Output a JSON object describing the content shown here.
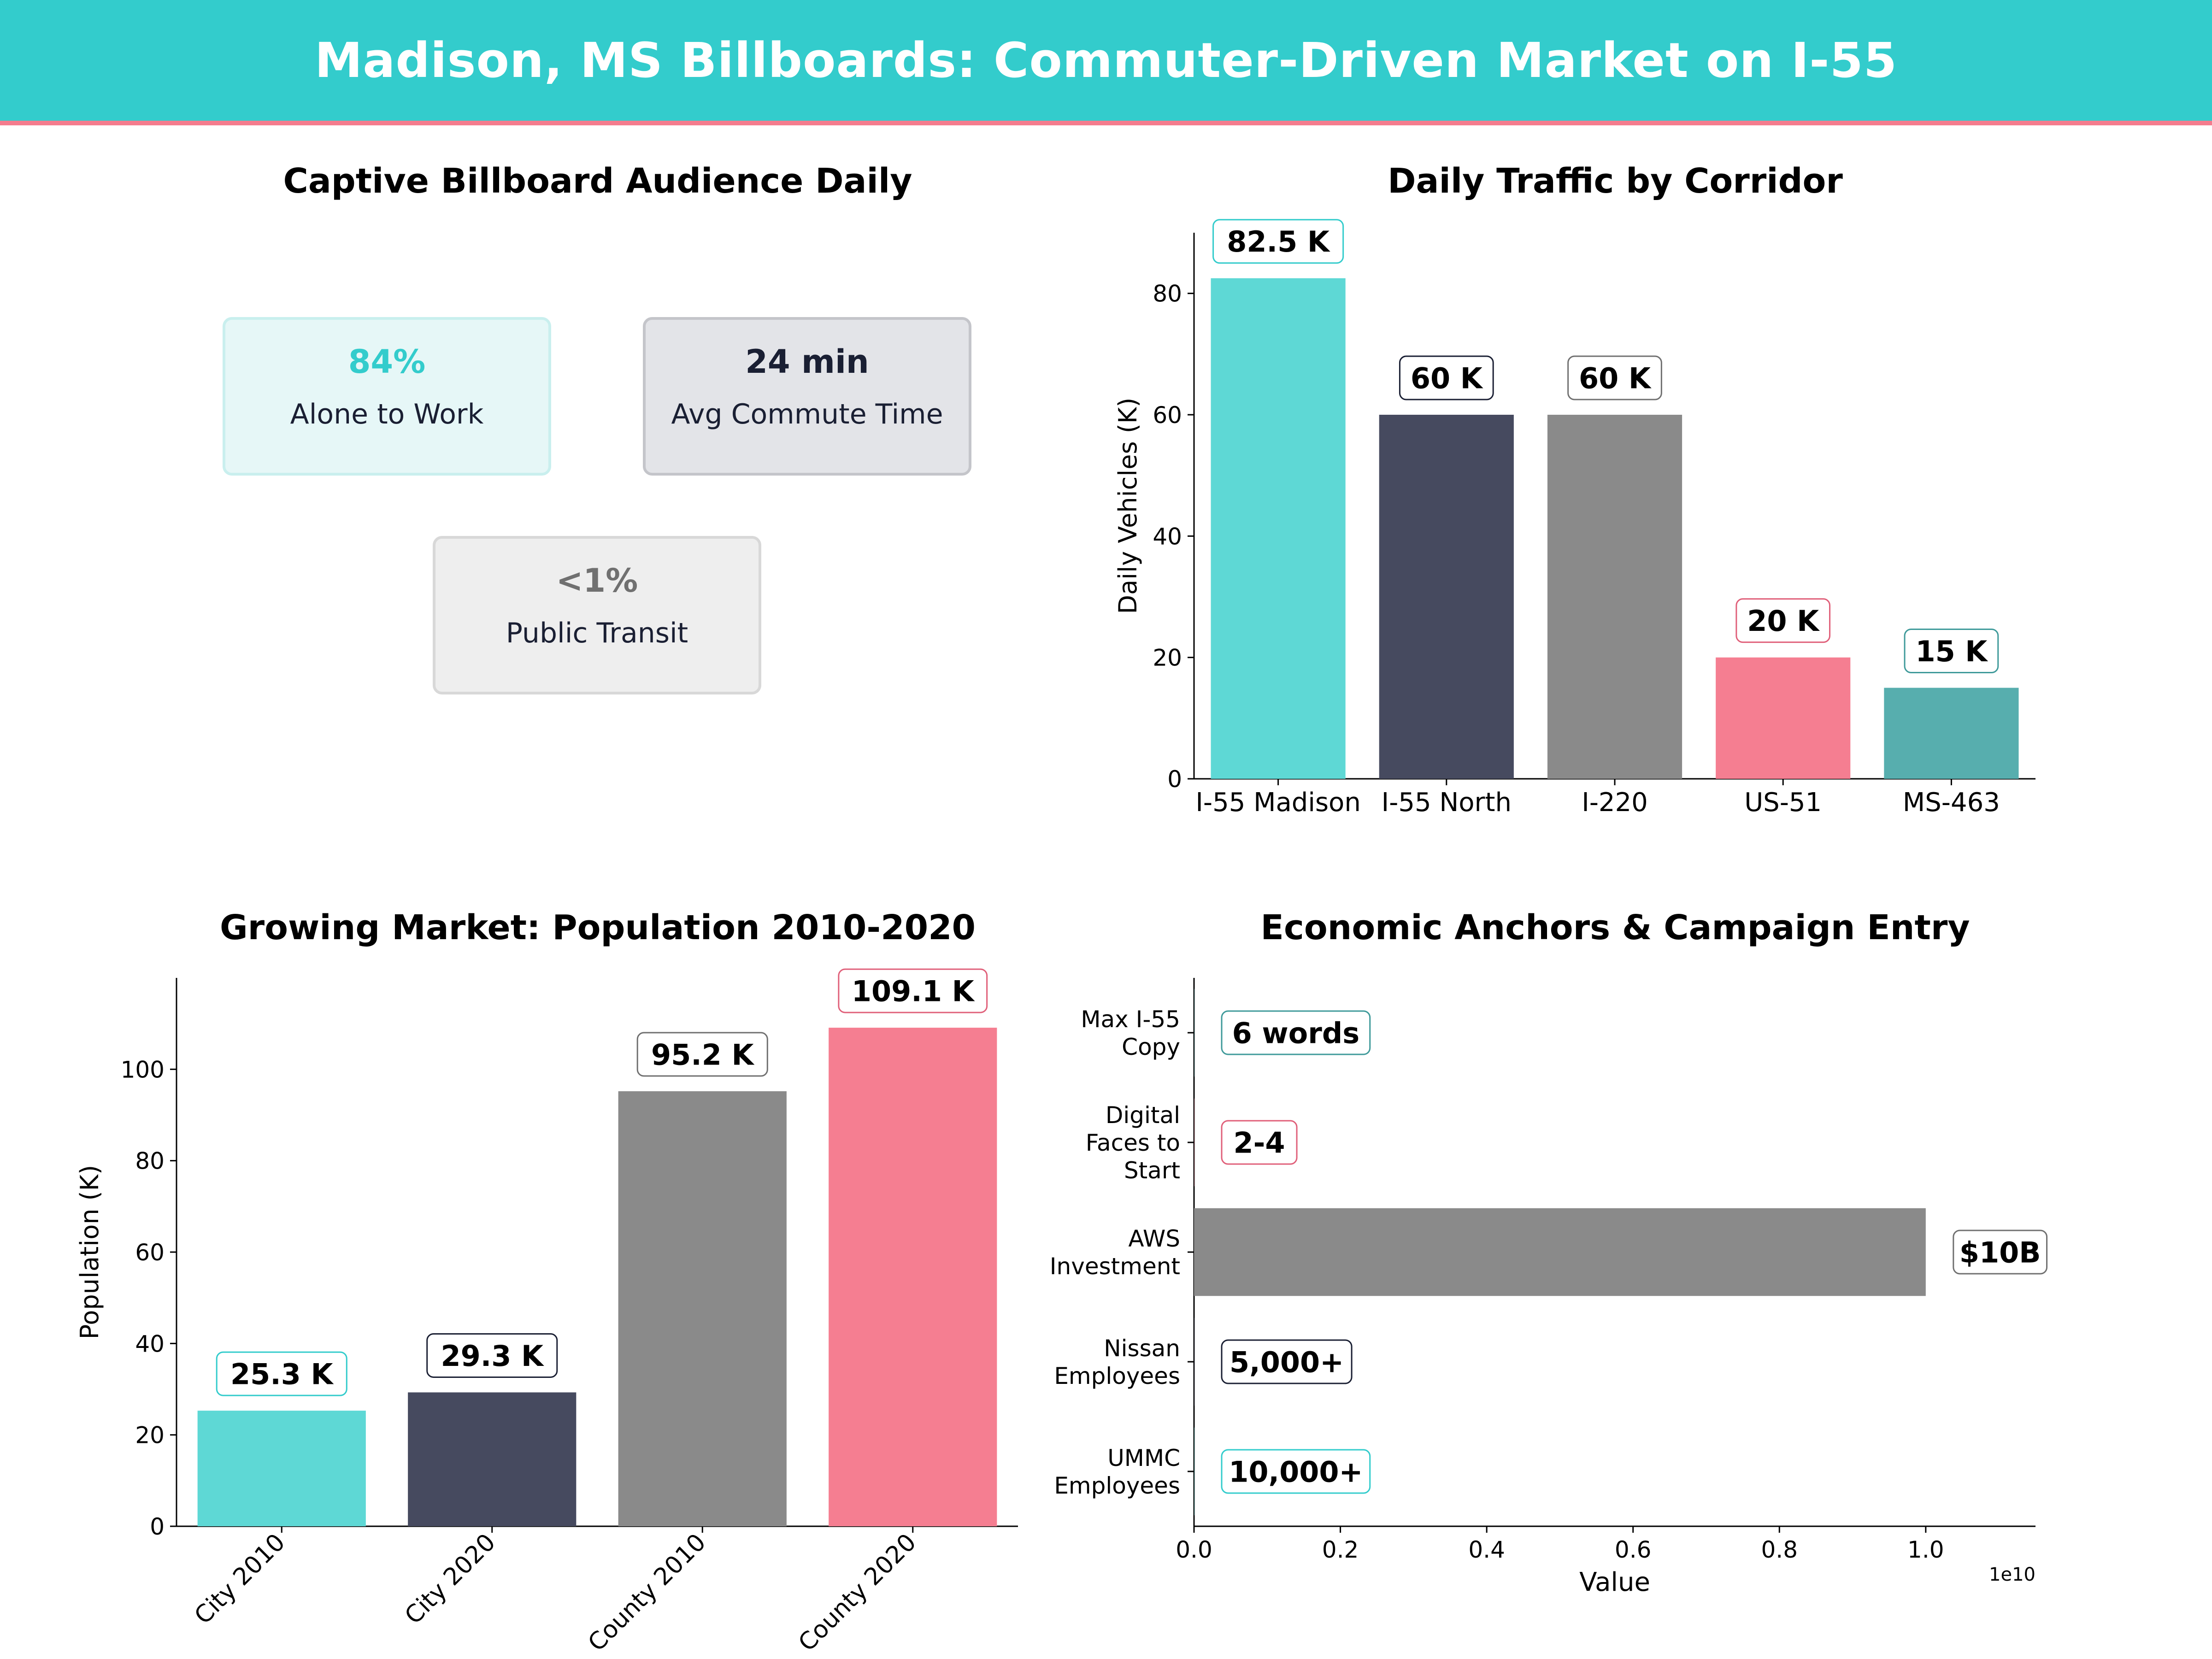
{
  "header": {
    "title": "Madison, MS Billboards: Commuter-Driven Market on I-55"
  },
  "colors": {
    "teal": "#5ed8d5",
    "navy": "#464a5f",
    "gray": "#8a8a8a",
    "pink": "#f57e91",
    "darkteal": "#57aeae"
  },
  "kpi": {
    "title": "Captive Billboard Audience Daily",
    "cards": [
      {
        "value": "84%",
        "label": "Alone to Work"
      },
      {
        "value": "24 min",
        "label": "Avg Commute Time"
      },
      {
        "value": "<1%",
        "label": "Public Transit"
      }
    ]
  },
  "chart_data": [
    {
      "type": "bar",
      "title": "Daily Traffic by Corridor",
      "xlabel": "",
      "ylabel": "Daily Vehicles (K)",
      "categories": [
        "I-55 Madison",
        "I-55 North",
        "I-220",
        "US-51",
        "MS-463"
      ],
      "values": [
        82.5,
        60,
        60,
        20,
        15
      ],
      "labels": [
        "82.5 K",
        "60 K",
        "60 K",
        "20 K",
        "15 K"
      ],
      "ylim": [
        0,
        90
      ],
      "yticks": [
        0,
        20,
        40,
        60,
        80
      ],
      "grid": false
    },
    {
      "type": "bar",
      "title": "Growing Market: Population 2010-2020",
      "xlabel": "",
      "ylabel": "Population (K)",
      "categories": [
        "City 2010",
        "City 2020",
        "County 2010",
        "County 2020"
      ],
      "values": [
        25.3,
        29.3,
        95.2,
        109.1
      ],
      "labels": [
        "25.3 K",
        "29.3 K",
        "95.2 K",
        "109.1 K"
      ],
      "ylim": [
        0,
        120
      ],
      "yticks": [
        0,
        20,
        40,
        60,
        80,
        100
      ],
      "grid": false
    },
    {
      "type": "bar",
      "orientation": "horizontal",
      "title": "Economic Anchors & Campaign Entry",
      "xlabel": "Value",
      "ylabel": "",
      "categories": [
        "UMMC Employees",
        "Nissan Employees",
        "AWS Investment",
        "Digital Faces to Start",
        "Max I-55 Copy"
      ],
      "category_lines": [
        [
          "UMMC",
          "Employees"
        ],
        [
          "Nissan",
          "Employees"
        ],
        [
          "AWS",
          "Investment"
        ],
        [
          "Digital",
          "Faces to",
          "Start"
        ],
        [
          "Max I-55",
          "Copy"
        ]
      ],
      "values": [
        10000,
        5000,
        10000000000,
        4,
        6
      ],
      "labels": [
        "10,000+",
        "5,000+",
        "$10B",
        "2-4",
        "6 words"
      ],
      "xlim": [
        0,
        11500000000
      ],
      "xticks": [
        0,
        2000000000,
        4000000000,
        6000000000,
        8000000000,
        10000000000
      ],
      "xtick_labels": [
        "0.0",
        "0.2",
        "0.4",
        "0.6",
        "0.8",
        "1.0"
      ],
      "offset_label": "1e10",
      "grid": false
    }
  ]
}
